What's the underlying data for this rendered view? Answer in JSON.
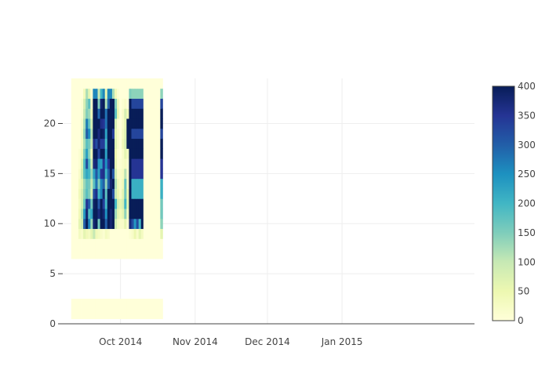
{
  "chart_data": {
    "type": "heatmap",
    "title": "",
    "xlabel": "",
    "ylabel": "",
    "x_range": [
      "2014-09-07",
      "2015-02-25"
    ],
    "ylim": [
      0,
      24.5
    ],
    "x_ticks": [
      {
        "date": "2014-10-01",
        "label": "Oct 2014"
      },
      {
        "date": "2014-11-01",
        "label": "Nov 2014"
      },
      {
        "date": "2014-12-01",
        "label": "Dec 2014"
      },
      {
        "date": "2015-01-01",
        "label": "Jan 2015"
      }
    ],
    "y_ticks": [
      0,
      5,
      10,
      15,
      20
    ],
    "colorscale": {
      "name": "YlGnBu",
      "min": 0,
      "max": 400,
      "ticks": [
        0,
        50,
        100,
        150,
        200,
        250,
        300,
        350,
        400
      ],
      "stops": [
        [
          0,
          "#ffffd9"
        ],
        [
          0.125,
          "#edf8b1"
        ],
        [
          0.25,
          "#c7e9b4"
        ],
        [
          0.375,
          "#7fcdbb"
        ],
        [
          0.5,
          "#41b6c4"
        ],
        [
          0.625,
          "#1d91c0"
        ],
        [
          0.75,
          "#225ea8"
        ],
        [
          0.875,
          "#253494"
        ],
        [
          1,
          "#081d58"
        ]
      ]
    },
    "x_dates": [
      "2014-09-11",
      "2014-09-12",
      "2014-09-13",
      "2014-09-14",
      "2014-09-15",
      "2014-09-16",
      "2014-09-17",
      "2014-09-18",
      "2014-09-19",
      "2014-09-20",
      "2014-09-21",
      "2014-09-22",
      "2014-09-23",
      "2014-09-24",
      "2014-09-25",
      "2014-09-26",
      "2014-09-27",
      "2014-09-28",
      "2014-09-29",
      "2014-09-30",
      "2014-10-01",
      "2014-10-02",
      "2014-10-03",
      "2014-10-04",
      "2014-10-05",
      "2014-10-06",
      "2014-10-07",
      "2014-10-08",
      "2014-10-09",
      "2014-10-10",
      "2014-10-11",
      "2014-10-12",
      "2014-10-13",
      "2014-10-14",
      "2014-10-15",
      "2014-10-16",
      "2014-10-17",
      "2014-10-18"
    ],
    "y_hours": [
      1,
      2,
      7,
      8,
      9,
      10,
      11,
      12,
      13,
      14,
      15,
      16,
      17,
      18,
      19,
      20,
      21,
      22,
      23,
      24
    ],
    "z": [
      [
        0,
        0,
        0,
        0,
        0,
        0,
        0,
        0,
        0,
        0,
        0,
        0,
        0,
        0,
        0,
        0,
        0,
        0,
        0,
        0,
        0,
        0,
        0,
        0,
        0,
        0,
        0,
        0,
        0,
        0,
        0,
        0,
        0,
        0,
        0,
        0,
        0,
        0
      ],
      [
        0,
        0,
        0,
        0,
        0,
        0,
        0,
        0,
        0,
        0,
        0,
        0,
        0,
        0,
        0,
        0,
        0,
        0,
        0,
        0,
        0,
        0,
        0,
        0,
        0,
        0,
        0,
        0,
        0,
        0,
        0,
        0,
        0,
        0,
        0,
        0,
        0,
        0
      ],
      [
        0,
        0,
        0,
        0,
        0,
        0,
        0,
        0,
        0,
        0,
        0,
        0,
        0,
        0,
        0,
        0,
        0,
        0,
        0,
        0,
        0,
        0,
        0,
        0,
        0,
        0,
        0,
        0,
        0,
        0,
        0,
        0,
        0,
        0,
        0,
        0,
        0,
        0
      ],
      [
        0,
        0,
        0,
        0,
        0,
        0,
        0,
        0,
        0,
        0,
        0,
        0,
        0,
        0,
        0,
        0,
        0,
        0,
        0,
        0,
        0,
        0,
        0,
        0,
        0,
        0,
        0,
        0,
        0,
        0,
        0,
        0,
        0,
        0,
        0,
        0,
        0,
        0
      ],
      [
        0,
        0,
        0,
        30,
        20,
        60,
        40,
        30,
        60,
        100,
        40,
        30,
        20,
        10,
        30,
        20,
        0,
        0,
        0,
        0,
        0,
        0,
        0,
        0,
        10,
        20,
        50,
        20,
        60,
        30,
        0,
        0,
        0,
        0,
        0,
        0,
        0,
        60
      ],
      [
        0,
        0,
        0,
        60,
        90,
        300,
        400,
        260,
        130,
        380,
        400,
        160,
        400,
        400,
        300,
        400,
        380,
        400,
        90,
        30,
        20,
        20,
        60,
        10,
        370,
        320,
        240,
        320,
        200,
        400,
        0,
        0,
        0,
        0,
        0,
        0,
        0,
        140
      ],
      [
        0,
        0,
        0,
        40,
        110,
        240,
        380,
        190,
        220,
        400,
        400,
        370,
        400,
        380,
        250,
        400,
        380,
        400,
        130,
        60,
        40,
        60,
        140,
        30,
        400,
        400,
        400,
        400,
        400,
        400,
        0,
        0,
        0,
        0,
        0,
        0,
        0,
        160
      ],
      [
        0,
        0,
        0,
        30,
        80,
        170,
        350,
        300,
        160,
        390,
        400,
        310,
        400,
        340,
        200,
        400,
        400,
        400,
        200,
        80,
        60,
        80,
        200,
        60,
        400,
        400,
        400,
        400,
        400,
        400,
        0,
        0,
        0,
        0,
        0,
        0,
        0,
        160
      ],
      [
        0,
        0,
        0,
        40,
        80,
        140,
        180,
        150,
        80,
        320,
        360,
        200,
        260,
        380,
        180,
        400,
        400,
        320,
        100,
        50,
        20,
        60,
        160,
        50,
        400,
        210,
        210,
        210,
        210,
        210,
        0,
        0,
        0,
        0,
        0,
        0,
        0,
        210
      ],
      [
        0,
        0,
        0,
        30,
        60,
        130,
        170,
        160,
        100,
        180,
        280,
        150,
        260,
        300,
        140,
        300,
        380,
        400,
        120,
        40,
        20,
        40,
        170,
        30,
        400,
        210,
        210,
        210,
        210,
        210,
        0,
        0,
        0,
        0,
        0,
        0,
        0,
        210
      ],
      [
        0,
        0,
        0,
        20,
        90,
        180,
        220,
        200,
        130,
        230,
        310,
        230,
        350,
        360,
        210,
        300,
        400,
        310,
        90,
        20,
        20,
        30,
        110,
        20,
        400,
        350,
        350,
        350,
        350,
        350,
        0,
        0,
        0,
        0,
        0,
        0,
        0,
        350
      ],
      [
        0,
        0,
        0,
        10,
        70,
        190,
        320,
        190,
        90,
        370,
        380,
        240,
        230,
        350,
        250,
        350,
        400,
        400,
        60,
        10,
        10,
        20,
        30,
        10,
        400,
        350,
        350,
        350,
        350,
        350,
        0,
        0,
        0,
        0,
        0,
        0,
        0,
        350
      ],
      [
        0,
        0,
        0,
        10,
        40,
        150,
        230,
        140,
        40,
        400,
        400,
        330,
        400,
        400,
        230,
        400,
        400,
        400,
        50,
        10,
        0,
        20,
        60,
        30,
        400,
        400,
        400,
        400,
        400,
        400,
        0,
        0,
        0,
        0,
        0,
        0,
        0,
        400
      ],
      [
        0,
        0,
        0,
        0,
        30,
        120,
        180,
        160,
        100,
        360,
        320,
        380,
        340,
        340,
        200,
        400,
        400,
        400,
        70,
        20,
        0,
        40,
        80,
        400,
        400,
        400,
        400,
        400,
        400,
        400,
        0,
        0,
        0,
        0,
        0,
        0,
        0,
        400
      ],
      [
        0,
        0,
        0,
        0,
        30,
        140,
        300,
        250,
        110,
        400,
        400,
        370,
        400,
        390,
        230,
        400,
        400,
        340,
        60,
        20,
        0,
        30,
        70,
        400,
        400,
        330,
        330,
        330,
        330,
        330,
        0,
        0,
        0,
        0,
        0,
        0,
        0,
        330
      ],
      [
        0,
        0,
        0,
        0,
        20,
        120,
        270,
        170,
        80,
        400,
        400,
        400,
        360,
        350,
        280,
        400,
        400,
        400,
        80,
        10,
        0,
        20,
        60,
        400,
        400,
        400,
        400,
        400,
        400,
        400,
        0,
        0,
        0,
        0,
        0,
        0,
        0,
        400
      ],
      [
        0,
        0,
        0,
        0,
        10,
        100,
        150,
        130,
        40,
        400,
        400,
        290,
        400,
        400,
        280,
        400,
        400,
        400,
        180,
        50,
        0,
        20,
        80,
        40,
        400,
        400,
        400,
        400,
        400,
        400,
        0,
        0,
        0,
        0,
        0,
        0,
        0,
        400
      ],
      [
        0,
        0,
        0,
        0,
        10,
        80,
        140,
        180,
        20,
        400,
        400,
        150,
        380,
        400,
        120,
        300,
        400,
        400,
        150,
        40,
        0,
        10,
        20,
        0,
        400,
        330,
        330,
        330,
        330,
        330,
        0,
        0,
        0,
        0,
        0,
        0,
        0,
        330
      ],
      [
        0,
        0,
        0,
        0,
        0,
        40,
        120,
        60,
        10,
        260,
        260,
        100,
        200,
        260,
        60,
        260,
        260,
        120,
        40,
        10,
        0,
        0,
        0,
        0,
        150,
        140,
        140,
        140,
        140,
        140,
        0,
        0,
        0,
        0,
        0,
        0,
        0,
        140
      ],
      [
        0,
        0,
        0,
        0,
        0,
        0,
        0,
        0,
        0,
        0,
        0,
        0,
        0,
        0,
        0,
        0,
        0,
        0,
        0,
        0,
        0,
        0,
        0,
        0,
        0,
        0,
        0,
        0,
        0,
        0,
        0,
        0,
        0,
        0,
        0,
        0,
        0,
        0
      ]
    ]
  }
}
